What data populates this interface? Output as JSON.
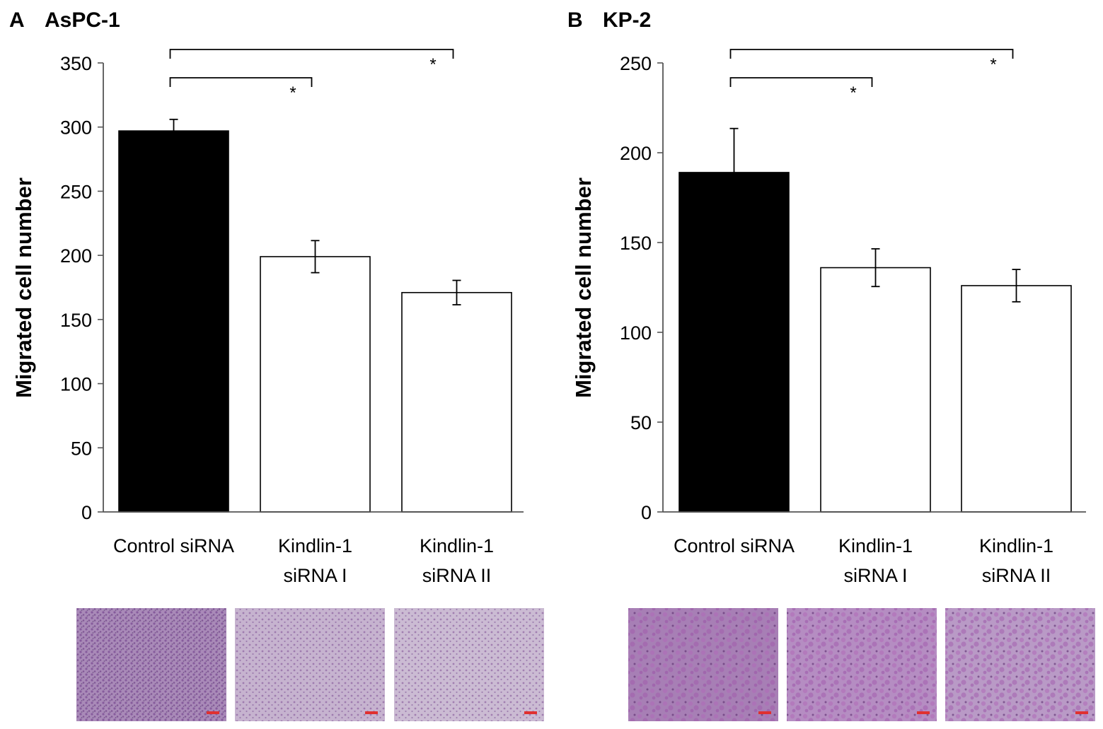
{
  "chart_data": [
    {
      "type": "bar",
      "panel": "A",
      "title": "AsPC-1",
      "ylabel": "Migrated cell number",
      "xlabel": "",
      "ylim": [
        0,
        350
      ],
      "yticks": [
        0,
        50,
        100,
        150,
        200,
        250,
        300,
        350
      ],
      "categories": [
        [
          "Control siRNA"
        ],
        [
          "Kindlin-1",
          "siRNA I"
        ],
        [
          "Kindlin-1",
          "siRNA II"
        ]
      ],
      "values": [
        297,
        199,
        171
      ],
      "errors": [
        9,
        12.5,
        9.5
      ],
      "colors": [
        "#000000",
        "#ffffff",
        "#ffffff"
      ],
      "grid": false,
      "significance": [
        {
          "from": 0,
          "to": 1,
          "label": "*"
        },
        {
          "from": 0,
          "to": 2,
          "label": "*"
        }
      ],
      "micrograph_colors": [
        "#a98ab8",
        "#c6b3cf",
        "#cbbbd3"
      ]
    },
    {
      "type": "bar",
      "panel": "B",
      "title": "KP-2",
      "ylabel": "Migrated cell number",
      "xlabel": "",
      "ylim": [
        0,
        250
      ],
      "yticks": [
        0,
        50,
        100,
        150,
        200,
        250
      ],
      "categories": [
        [
          "Control siRNA"
        ],
        [
          "Kindlin-1",
          "siRNA I"
        ],
        [
          "Kindlin-1",
          "siRNA II"
        ]
      ],
      "values": [
        189,
        136,
        126
      ],
      "errors": [
        24.5,
        10.5,
        9
      ],
      "colors": [
        "#000000",
        "#ffffff",
        "#ffffff"
      ],
      "grid": false,
      "significance": [
        {
          "from": 0,
          "to": 1,
          "label": "*"
        },
        {
          "from": 0,
          "to": 2,
          "label": "*"
        }
      ],
      "micrograph_colors": [
        "#a77fb5",
        "#b58dc2",
        "#b99ac6"
      ]
    }
  ]
}
